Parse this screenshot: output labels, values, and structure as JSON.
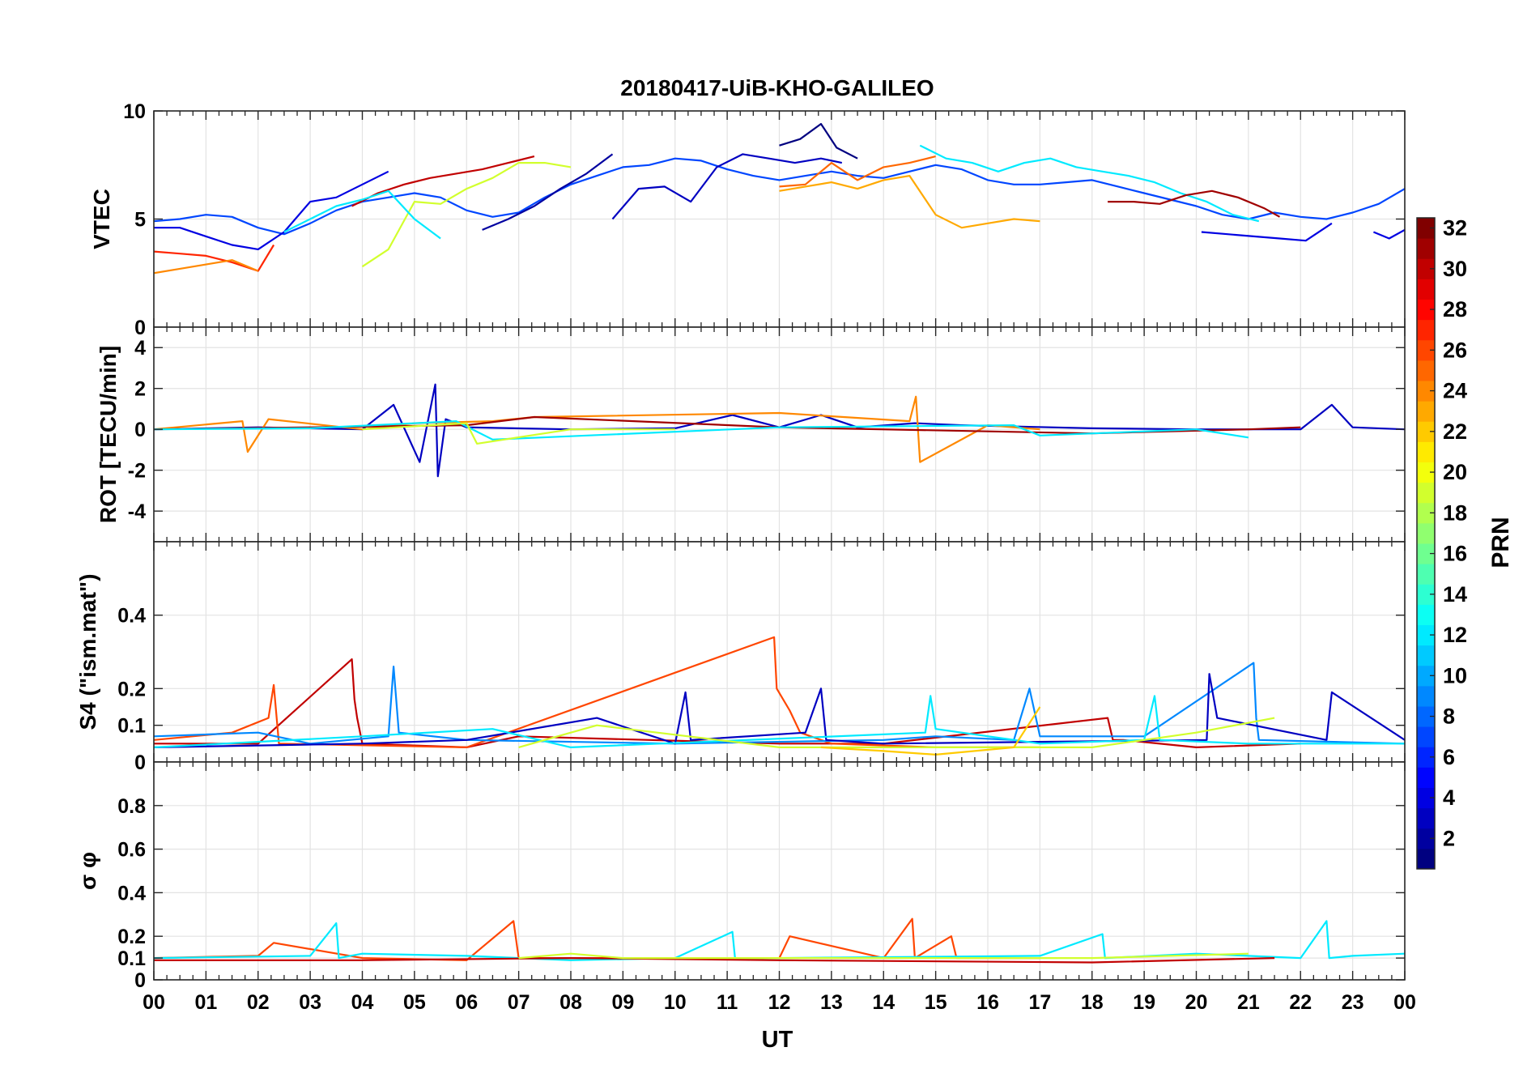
{
  "chart_data": {
    "title": "20180417-UiB-KHO-GALILEO",
    "type": "line",
    "xlabel": "UT",
    "xticks": [
      "00",
      "01",
      "02",
      "03",
      "04",
      "05",
      "06",
      "07",
      "08",
      "09",
      "10",
      "11",
      "12",
      "13",
      "14",
      "15",
      "16",
      "17",
      "18",
      "19",
      "20",
      "21",
      "22",
      "23",
      "00"
    ],
    "xlim": [
      0,
      24
    ],
    "grid": true,
    "panels": [
      {
        "ylabel": "VTEC",
        "ylim": [
          0,
          10
        ],
        "yticks": [
          "0",
          "5",
          "10"
        ],
        "ytick_values": [
          0,
          5,
          10
        ],
        "series": [
          {
            "prn": 7,
            "x": [
              0,
              0.5,
              1,
              1.5,
              2,
              2.5,
              3,
              3.5,
              4,
              4.5,
              5,
              5.5,
              6,
              6.5,
              7,
              7.5,
              8,
              8.5,
              9,
              9.5,
              10,
              10.5,
              11,
              11.5,
              12,
              12.5,
              13,
              13.5,
              14,
              14.5,
              15,
              15.5,
              16,
              16.5,
              17,
              17.5,
              18,
              18.5,
              19,
              19.5,
              20,
              20.5,
              21,
              21.5,
              22,
              22.5,
              23,
              23.5,
              24
            ],
            "y": [
              4.9,
              5.0,
              5.2,
              5.1,
              4.6,
              4.3,
              4.8,
              5.4,
              5.8,
              6.0,
              6.2,
              6.0,
              5.4,
              5.1,
              5.3,
              6.0,
              6.6,
              7.0,
              7.4,
              7.5,
              7.8,
              7.7,
              7.3,
              7.0,
              6.8,
              7.0,
              7.2,
              7.0,
              6.9,
              7.2,
              7.5,
              7.3,
              6.8,
              6.6,
              6.6,
              6.7,
              6.8,
              6.5,
              6.2,
              5.9,
              5.6,
              5.2,
              5.0,
              5.3,
              5.1,
              5.0,
              5.3,
              5.7,
              6.4
            ]
          },
          {
            "prn": 4,
            "x": [
              0,
              0.5,
              1,
              1.5,
              2,
              2.5,
              3,
              3.5,
              4,
              4.5
            ],
            "y": [
              4.6,
              4.6,
              4.2,
              3.8,
              3.6,
              4.4,
              5.8,
              6.0,
              6.6,
              7.2
            ]
          },
          {
            "prn": 2,
            "x": [
              6.3,
              6.8,
              7.3,
              7.8,
              8.3,
              8.8
            ],
            "y": [
              4.5,
              5.0,
              5.6,
              6.4,
              7.1,
              8.0
            ]
          },
          {
            "prn": 3,
            "x": [
              8.8,
              9.3,
              9.8,
              10.3,
              10.8,
              11.3,
              11.8,
              12.3,
              12.8,
              13.2
            ],
            "y": [
              5.0,
              6.4,
              6.5,
              5.8,
              7.4,
              8.0,
              7.8,
              7.6,
              7.8,
              7.6
            ]
          },
          {
            "prn": 1,
            "x": [
              12.0,
              12.4,
              12.8,
              13.1,
              13.5
            ],
            "y": [
              8.4,
              8.7,
              9.4,
              8.3,
              7.8
            ]
          },
          {
            "prn": 30,
            "x": [
              3.8,
              4.3,
              4.8,
              5.3,
              5.8,
              6.3,
              6.8,
              7.3
            ],
            "y": [
              5.6,
              6.2,
              6.6,
              6.9,
              7.1,
              7.3,
              7.6,
              7.9
            ]
          },
          {
            "prn": 19,
            "x": [
              4.0,
              4.5,
              5.0,
              5.5,
              6.0,
              6.5,
              7.0,
              7.5,
              8.0
            ],
            "y": [
              2.8,
              3.6,
              5.8,
              5.7,
              6.4,
              6.9,
              7.6,
              7.6,
              7.4
            ]
          },
          {
            "prn": 12,
            "x": [
              2.5,
              3.0,
              3.5,
              4.0,
              4.5,
              5.0,
              5.5
            ],
            "y": [
              4.4,
              5.0,
              5.6,
              5.9,
              6.3,
              5.0,
              4.1
            ]
          },
          {
            "prn": 23,
            "x": [
              12.0,
              12.5,
              13.0,
              13.5,
              14.0,
              14.5,
              15.0,
              15.5,
              16.0,
              16.5,
              17.0
            ],
            "y": [
              6.3,
              6.5,
              6.7,
              6.4,
              6.8,
              7.0,
              5.2,
              4.6,
              4.8,
              5.0,
              4.9
            ]
          },
          {
            "prn": 25,
            "x": [
              12.0,
              12.5,
              13.0,
              13.5,
              14.0,
              14.5,
              15.0
            ],
            "y": [
              6.5,
              6.6,
              7.6,
              6.8,
              7.4,
              7.6,
              7.9
            ]
          },
          {
            "prn": 12,
            "x": [
              14.7,
              15.2,
              15.7,
              16.2,
              16.7,
              17.2,
              17.7,
              18.2,
              18.7,
              19.2,
              19.7,
              20.2,
              20.7,
              21.2
            ],
            "y": [
              8.4,
              7.8,
              7.6,
              7.2,
              7.6,
              7.8,
              7.4,
              7.2,
              7.0,
              6.7,
              6.2,
              5.8,
              5.2,
              4.9
            ]
          },
          {
            "prn": 31,
            "x": [
              18.3,
              18.8,
              19.3,
              19.8,
              20.3,
              20.8,
              21.3,
              21.6
            ],
            "y": [
              5.8,
              5.8,
              5.7,
              6.1,
              6.3,
              6.0,
              5.5,
              5.1
            ]
          },
          {
            "prn": 4,
            "x": [
              20.1,
              20.6,
              21.1,
              21.6,
              22.1,
              22.6
            ],
            "y": [
              4.4,
              4.3,
              4.2,
              4.1,
              4.0,
              4.8
            ]
          },
          {
            "prn": 4,
            "x": [
              23.4,
              23.7,
              24.0
            ],
            "y": [
              4.4,
              4.1,
              4.5
            ]
          },
          {
            "prn": 27,
            "x": [
              0,
              0.5,
              1,
              1.5,
              2,
              2.3
            ],
            "y": [
              3.5,
              3.4,
              3.3,
              3.0,
              2.6,
              3.8
            ]
          },
          {
            "prn": 24,
            "x": [
              0,
              0.5,
              1,
              1.5,
              2
            ],
            "y": [
              2.5,
              2.7,
              2.9,
              3.1,
              2.6
            ]
          }
        ]
      },
      {
        "ylabel": "ROT [TECU/min]",
        "ylim": [
          -5.5,
          5
        ],
        "yticks": [
          "-4",
          "-2",
          "0",
          "2",
          "4"
        ],
        "ytick_values": [
          -4,
          -2,
          0,
          2,
          4
        ],
        "series": [
          {
            "prn": 3,
            "x": [
              0,
              2,
              4,
              4.6,
              5.1,
              5.4,
              5.45,
              5.6,
              6,
              8,
              10,
              11.1,
              12,
              12.8,
              13.5,
              14.6,
              15.5,
              18,
              20,
              22,
              22.6,
              23,
              24
            ],
            "y": [
              0,
              0.1,
              0,
              1.2,
              -1.6,
              2.2,
              -2.3,
              0.5,
              0.1,
              0,
              0.05,
              0.7,
              0.1,
              0.7,
              0.1,
              0.3,
              0.2,
              0.05,
              0,
              0,
              1.2,
              0.1,
              0
            ]
          },
          {
            "prn": 24,
            "x": [
              0,
              1.7,
              1.8,
              2.2,
              4,
              5,
              6.5,
              7.3,
              12.0,
              14.5,
              14.62,
              14.7,
              16,
              17
            ],
            "y": [
              0,
              0.4,
              -1.1,
              0.5,
              0,
              0.3,
              0.4,
              0.6,
              0.8,
              0.4,
              1.6,
              -1.6,
              0.2,
              0
            ]
          },
          {
            "prn": 31,
            "x": [
              0,
              3,
              6,
              7.3,
              12,
              18,
              21,
              22
            ],
            "y": [
              0,
              0.1,
              0.2,
              0.6,
              0.1,
              -0.2,
              0,
              0.1
            ]
          },
          {
            "prn": 12,
            "x": [
              0,
              3,
              5.8,
              6.5,
              12,
              16.5,
              17,
              20,
              21
            ],
            "y": [
              0,
              0.05,
              0.4,
              -0.5,
              0.1,
              0.2,
              -0.3,
              0,
              -0.4
            ]
          },
          {
            "prn": 19,
            "x": [
              4,
              6,
              6.2,
              8,
              10
            ],
            "y": [
              0,
              0.3,
              -0.7,
              0,
              0
            ]
          }
        ]
      },
      {
        "ylabel": "S4 (\"ism.mat\")",
        "ylim": [
          0,
          0.6
        ],
        "yticks": [
          "0",
          "0.1",
          "0.2",
          "0.4"
        ],
        "ytick_values": [
          0,
          0.1,
          0.2,
          0.4
        ],
        "series": [
          {
            "prn": 30,
            "x": [
              0,
              2,
              3.8,
              3.85,
              3.9,
              4,
              6,
              7,
              12,
              14,
              18.3,
              18.4,
              18.6,
              20,
              22
            ],
            "y": [
              0.05,
              0.05,
              0.28,
              0.17,
              0.12,
              0.05,
              0.04,
              0.07,
              0.05,
              0.05,
              0.12,
              0.06,
              0.06,
              0.04,
              0.05
            ]
          },
          {
            "prn": 26,
            "x": [
              0,
              1.5,
              2.2,
              2.3,
              2.4,
              6,
              11.9,
              11.95,
              12.2,
              12.4,
              13,
              15,
              17
            ],
            "y": [
              0.06,
              0.08,
              0.12,
              0.21,
              0.05,
              0.04,
              0.34,
              0.2,
              0.14,
              0.08,
              0.05,
              0.04,
              0.04
            ]
          },
          {
            "prn": 9,
            "x": [
              0,
              2,
              3,
              4.5,
              4.6,
              4.7,
              6,
              10,
              14,
              15,
              16.5,
              16.8,
              17,
              19,
              21.1,
              21.15,
              21.2,
              24
            ],
            "y": [
              0.07,
              0.08,
              0.05,
              0.07,
              0.26,
              0.08,
              0.06,
              0.05,
              0.06,
              0.07,
              0.06,
              0.2,
              0.07,
              0.07,
              0.27,
              0.12,
              0.06,
              0.05
            ]
          },
          {
            "prn": 3,
            "x": [
              0,
              4,
              6,
              8.5,
              10,
              10.2,
              10.3,
              12.5,
              12.8,
              12.9,
              14,
              20.2,
              20.25,
              20.4,
              22.5,
              22.6,
              24
            ],
            "y": [
              0.04,
              0.05,
              0.06,
              0.12,
              0.05,
              0.19,
              0.06,
              0.08,
              0.2,
              0.06,
              0.05,
              0.06,
              0.24,
              0.12,
              0.06,
              0.19,
              0.06
            ]
          },
          {
            "prn": 12,
            "x": [
              0,
              4,
              6.5,
              8,
              14.8,
              14.9,
              15,
              17,
              19,
              19.2,
              19.3,
              21,
              24
            ],
            "y": [
              0.04,
              0.07,
              0.09,
              0.04,
              0.08,
              0.18,
              0.09,
              0.05,
              0.06,
              0.18,
              0.06,
              0.05,
              0.05
            ]
          },
          {
            "prn": 19,
            "x": [
              7,
              8,
              8.5,
              12,
              18,
              20,
              21.5
            ],
            "y": [
              0.04,
              0.08,
              0.1,
              0.04,
              0.04,
              0.08,
              0.12
            ]
          },
          {
            "prn": 22,
            "x": [
              12.8,
              14,
              15,
              16.5,
              17
            ],
            "y": [
              0.04,
              0.03,
              0.02,
              0.04,
              0.15
            ]
          }
        ]
      },
      {
        "ylabel": "σ φ",
        "ylim": [
          0,
          1
        ],
        "yticks": [
          "0",
          "0.1",
          "0.2",
          "0.4",
          "0.6",
          "0.8"
        ],
        "ytick_values": [
          0,
          0.1,
          0.2,
          0.4,
          0.6,
          0.8
        ],
        "series": [
          {
            "prn": 26,
            "x": [
              0,
              2,
              2.3,
              4,
              6,
              6.9,
              7,
              8,
              12,
              12.2,
              14,
              14.55,
              14.6,
              15.3,
              15.4,
              17
            ],
            "y": [
              0.1,
              0.11,
              0.17,
              0.1,
              0.09,
              0.27,
              0.1,
              0.1,
              0.1,
              0.2,
              0.1,
              0.28,
              0.1,
              0.2,
              0.1,
              0.1
            ]
          },
          {
            "prn": 12,
            "x": [
              0,
              3,
              3.5,
              3.55,
              4,
              6,
              8,
              10,
              11.1,
              11.15,
              12,
              17,
              18.2,
              18.25,
              20,
              22,
              22.5,
              22.55,
              23,
              24
            ],
            "y": [
              0.1,
              0.11,
              0.26,
              0.1,
              0.12,
              0.11,
              0.09,
              0.1,
              0.22,
              0.1,
              0.1,
              0.11,
              0.21,
              0.1,
              0.12,
              0.1,
              0.27,
              0.1,
              0.11,
              0.12
            ]
          },
          {
            "prn": 30,
            "x": [
              0,
              4,
              8,
              12,
              18,
              21.5
            ],
            "y": [
              0.09,
              0.09,
              0.1,
              0.09,
              0.08,
              0.1
            ]
          },
          {
            "prn": 19,
            "x": [
              7,
              8,
              9,
              18,
              21
            ],
            "y": [
              0.1,
              0.12,
              0.1,
              0.1,
              0.12
            ]
          }
        ]
      }
    ],
    "colorbar": {
      "label": "PRN",
      "range": [
        1,
        32
      ],
      "ticks": [
        "2",
        "4",
        "6",
        "8",
        "10",
        "12",
        "14",
        "16",
        "18",
        "20",
        "22",
        "24",
        "26",
        "28",
        "30",
        "32"
      ],
      "tick_values": [
        2,
        4,
        6,
        8,
        10,
        12,
        14,
        16,
        18,
        20,
        22,
        24,
        26,
        28,
        30,
        32
      ],
      "colormap": "jet"
    }
  }
}
